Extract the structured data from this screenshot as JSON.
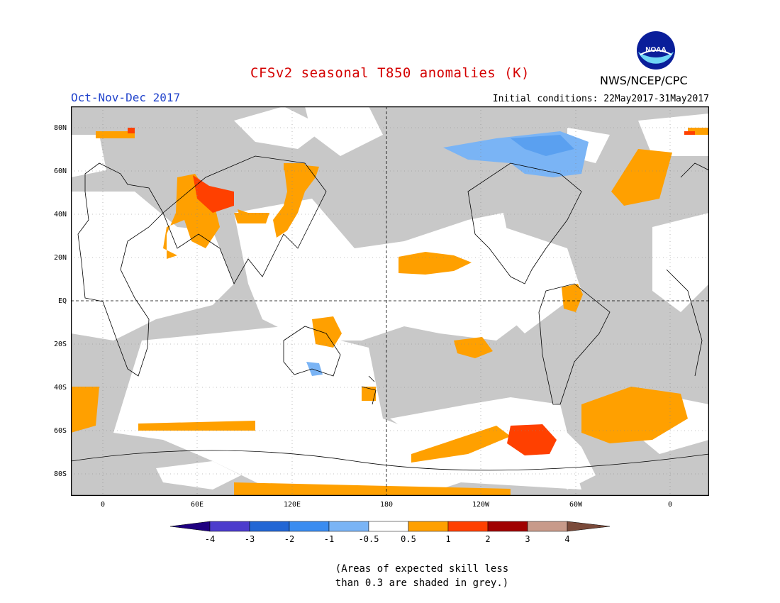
{
  "title": "CFSv2 seasonal T850 anomalies (K)",
  "organization": "NWS/NCEP/CPC",
  "logo_text": "NOAA",
  "season": "Oct-Nov-Dec 2017",
  "initial_conditions": "Initial conditions: 22May2017-31May2017",
  "lat_labels": [
    "80N",
    "60N",
    "40N",
    "20N",
    "EQ",
    "20S",
    "40S",
    "60S",
    "80S"
  ],
  "lon_labels": [
    "0",
    "60E",
    "120E",
    "180",
    "120W",
    "60W",
    "0"
  ],
  "colorbar": {
    "labels": [
      "-4",
      "-3",
      "-2",
      "-1",
      "-0.5",
      "0.5",
      "1",
      "2",
      "3",
      "4"
    ],
    "colors": [
      "#1f0080",
      "#4c3ccc",
      "#2266d4",
      "#3a8cf0",
      "#7ab4f5",
      "#ffffff",
      "#ffa000",
      "#ff4000",
      "#a00000",
      "#c89a8a",
      "#7a4a3a"
    ]
  },
  "skill_note_line1": "(Areas of expected skill less",
  "skill_note_line2": "than 0.3 are shaded in grey.)",
  "colors": {
    "grey": "#c8c8c8",
    "orange": "#ffa000",
    "red": "#ff4000",
    "lightblue": "#7ab4f5",
    "blue": "#5aa0f0",
    "title": "#d40000",
    "season": "#2244cc"
  }
}
